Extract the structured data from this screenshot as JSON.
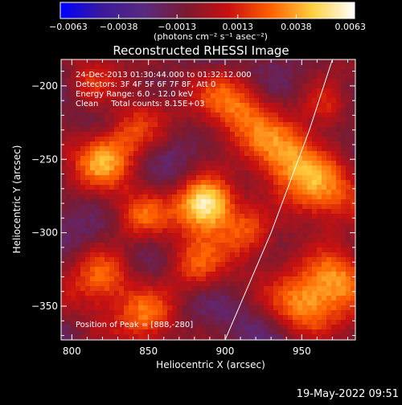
{
  "chart_data": {
    "type": "heatmap",
    "title": "Reconstructed RHESSI Image",
    "xlabel": "Heliocentric X (arcsec)",
    "ylabel": "Heliocentric Y (arcsec)",
    "xlim": [
      793,
      985
    ],
    "ylim": [
      -373,
      -182
    ],
    "x_ticks": [
      800,
      850,
      900,
      950
    ],
    "x_tick_labels": [
      "800",
      "850",
      "900",
      "950"
    ],
    "y_ticks": [
      -200,
      -250,
      -300,
      -350
    ],
    "y_tick_labels": [
      "−200",
      "−250",
      "−300",
      "−350"
    ],
    "colorbar": {
      "min": -0.0063,
      "max": 0.0063,
      "ticks": [
        -0.0063,
        -0.0038,
        -0.0013,
        0.0013,
        0.0038,
        0.0063
      ],
      "tick_labels": [
        "−0.0063",
        "−0.0038",
        "−0.0013",
        "0.0013",
        "0.0038",
        "0.0063"
      ],
      "units_label": "(photons cm⁻² s⁻¹ asec⁻²)",
      "colors": [
        "#0000ff",
        "#3a1a9a",
        "#5a2a80",
        "#7a1a30",
        "#c81010",
        "#ff6000",
        "#ffd040",
        "#ffffff"
      ]
    },
    "annotations": [
      "24-Dec-2013 01:30:44.000 to 01:32:12.000",
      "Detectors: 3F 4F 5F 6F 7F 8F, Att 0",
      "Energy Range: 6.0 - 12.0 keV",
      "Clean     Total counts: 8.15E+03"
    ],
    "peak_label": "Position of Peak = [888,-280]",
    "peak": {
      "x": 888,
      "y": -280
    },
    "limb_line": [
      [
        900,
        -373
      ],
      [
        930,
        -300
      ],
      [
        955,
        -230
      ],
      [
        970,
        -182
      ]
    ],
    "sources": [
      {
        "x": 888,
        "y": -280,
        "radius": 13,
        "value": 0.0063
      },
      {
        "x": 820,
        "y": -250,
        "radius": 14,
        "value": 0.0028
      },
      {
        "x": 840,
        "y": -230,
        "radius": 14,
        "value": 0.0022
      },
      {
        "x": 905,
        "y": -210,
        "radius": 16,
        "value": 0.0024
      },
      {
        "x": 935,
        "y": -245,
        "radius": 18,
        "value": 0.0026
      },
      {
        "x": 960,
        "y": -275,
        "radius": 18,
        "value": 0.0028
      },
      {
        "x": 975,
        "y": -330,
        "radius": 16,
        "value": 0.0032
      },
      {
        "x": 950,
        "y": -350,
        "radius": 15,
        "value": 0.0025
      },
      {
        "x": 820,
        "y": -330,
        "radius": 14,
        "value": 0.003
      },
      {
        "x": 850,
        "y": -355,
        "radius": 13,
        "value": 0.0026
      },
      {
        "x": 880,
        "y": -325,
        "radius": 14,
        "value": 0.002
      },
      {
        "x": 915,
        "y": -300,
        "radius": 12,
        "value": 0.0018
      },
      {
        "x": 845,
        "y": -290,
        "radius": 12,
        "value": 0.0015
      },
      {
        "x": 965,
        "y": -215,
        "radius": 12,
        "value": 0.0018
      },
      {
        "x": 810,
        "y": -200,
        "radius": 12,
        "value": 0.0012
      }
    ],
    "background_level": -0.0012
  },
  "footer": {
    "timestamp": "19-May-2022 09:51"
  },
  "colors": {
    "background": "#000000",
    "text": "#ffffff",
    "limb_line": "#ffffff"
  }
}
